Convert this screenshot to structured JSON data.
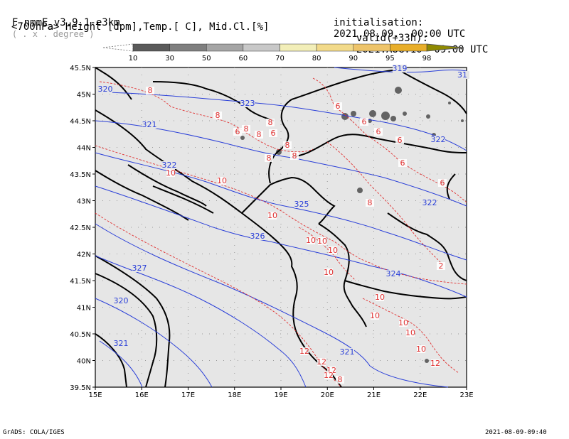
{
  "header": {
    "model": "F-nmmE_v3.9.1-e3km",
    "proj": "( . x . degree )",
    "desc": "<700hPa> Height [dpm],Temp.[ C], Mid.Cl.[%]",
    "init_label": "initialisation:",
    "init_value": "2021.08.09.  00:00 UTC",
    "valid_label": "valid(+33h):",
    "valid_value": "2021.AUG.10  09:00 UTC"
  },
  "colorbar": {
    "labels": [
      "10",
      "30",
      "50",
      "60",
      "70",
      "80",
      "90",
      "95",
      "98"
    ],
    "colors": [
      "#5a5a5a",
      "#7f7f7f",
      "#a5a5a5",
      "#c8c8c8",
      "#f2eeb8",
      "#f2da8a",
      "#eec46a",
      "#e8ae2a"
    ]
  },
  "map": {
    "background": "#e6e6e6",
    "lon_ticks": [
      "15E",
      "16E",
      "17E",
      "18E",
      "19E",
      "20E",
      "21E",
      "22E",
      "23E"
    ],
    "lat_ticks": [
      "45.5N",
      "45N",
      "44.5N",
      "44N",
      "43.5N",
      "43N",
      "42.5N",
      "42N",
      "41.5N",
      "41N",
      "40.5N",
      "40N",
      "39.5N"
    ],
    "height_color": "#2a3fd8",
    "temp_color": "#e03030",
    "height_labels": [
      "320",
      "319",
      "31",
      "321",
      "322",
      "323",
      "325",
      "326",
      "327",
      "320",
      "321",
      "322",
      "322",
      "324",
      "321"
    ],
    "temp_labels": [
      "8",
      "8",
      "6",
      "8",
      "8",
      "6",
      "8",
      "8",
      "8",
      "8",
      "6",
      "6",
      "6",
      "6",
      "6",
      "6",
      "10",
      "10",
      "10",
      "10",
      "10",
      "10",
      "10",
      "10",
      "10",
      "10",
      "10",
      "10",
      "12",
      "12",
      "12",
      "12",
      "12",
      "8",
      "8",
      "2"
    ]
  },
  "footer": {
    "left": "GrADS: COLA/IGES",
    "right": "2021-08-09-09:40"
  }
}
